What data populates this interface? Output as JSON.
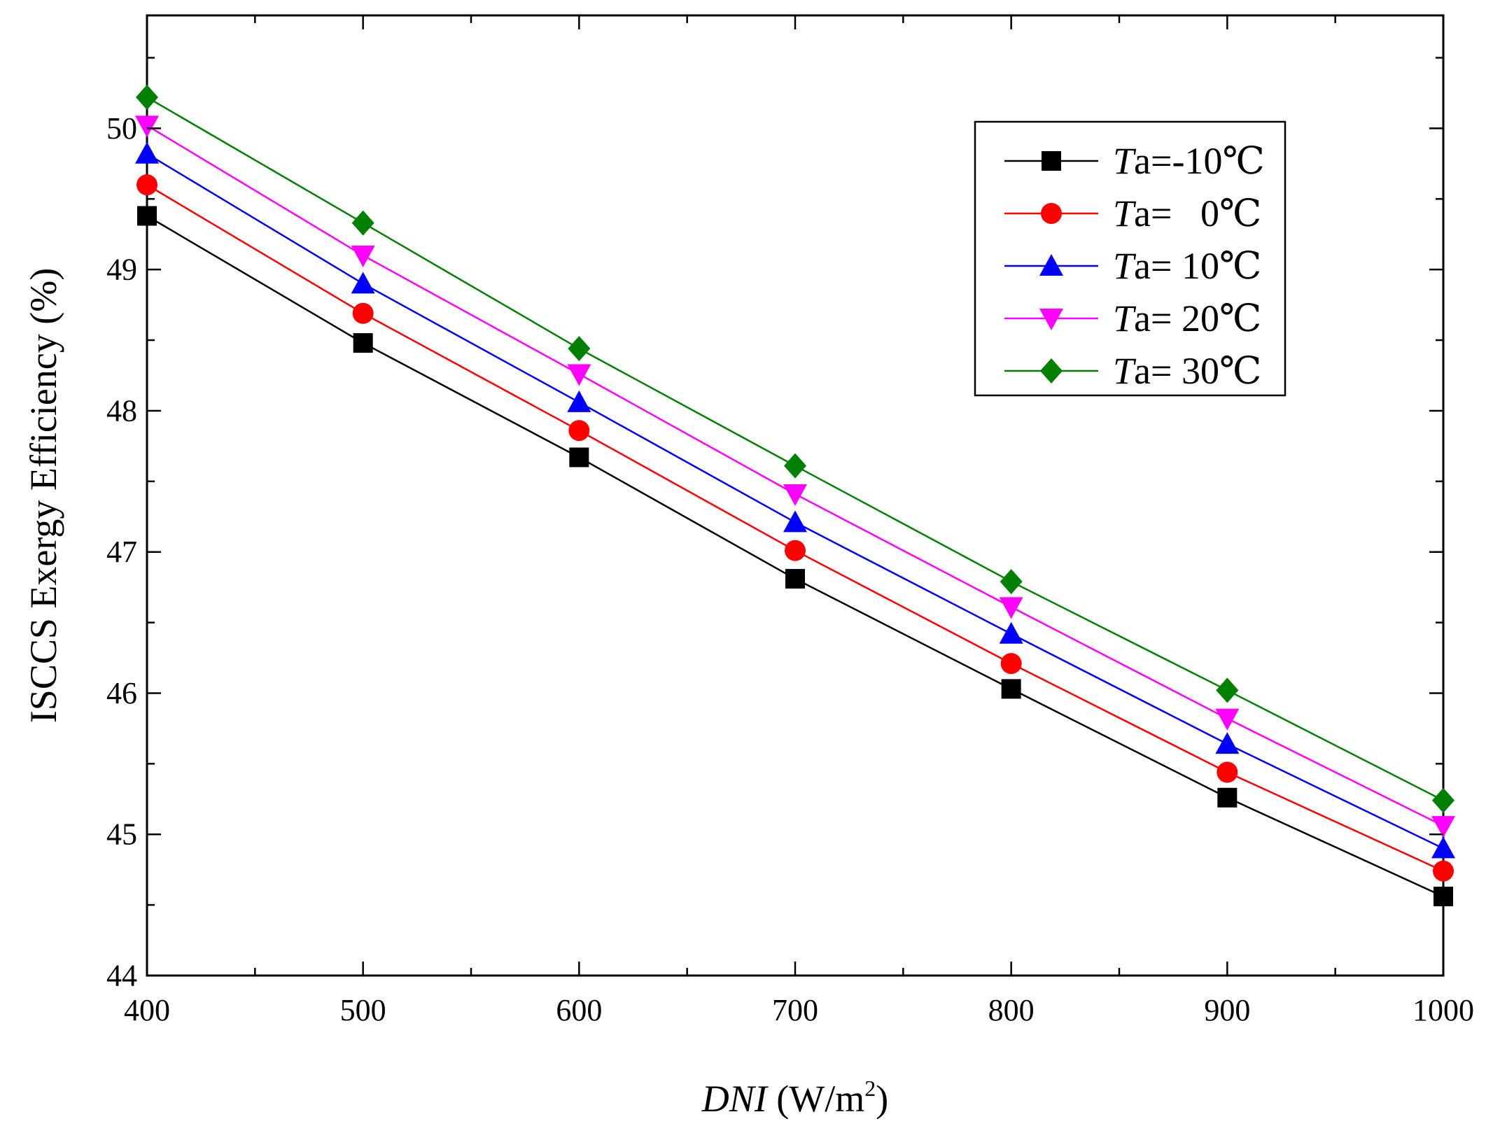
{
  "chart_data": {
    "type": "line",
    "title": "",
    "xlabel": {
      "italic": "DNI",
      "unit_prefix": " (W/m",
      "sup": "2",
      "unit_suffix": ")"
    },
    "ylabel": "ISCCS Exergy Efficiency (%)",
    "x": [
      400,
      500,
      600,
      700,
      800,
      900,
      1000
    ],
    "xlim": [
      400,
      1000
    ],
    "ylim": [
      44,
      50.8
    ],
    "x_ticks": [
      400,
      500,
      600,
      700,
      800,
      900,
      1000
    ],
    "y_ticks": [
      44,
      45,
      46,
      47,
      48,
      49,
      50
    ],
    "grid": false,
    "legend_position": "top-right",
    "series": [
      {
        "name_italic": "T",
        "name_rest": "a=-10℃",
        "color": "#000000",
        "marker": "square",
        "values": [
          49.38,
          48.48,
          47.67,
          46.81,
          46.03,
          45.26,
          44.56
        ]
      },
      {
        "name_italic": "T",
        "name_rest": "a=   0℃",
        "color": "#ff0000",
        "marker": "circle",
        "values": [
          49.6,
          48.69,
          47.86,
          47.01,
          46.21,
          45.44,
          44.74
        ]
      },
      {
        "name_italic": "T",
        "name_rest": "a= 10℃",
        "color": "#0000ff",
        "marker": "triangle-up",
        "values": [
          49.82,
          48.9,
          48.06,
          47.21,
          46.42,
          45.64,
          44.9
        ]
      },
      {
        "name_italic": "T",
        "name_rest": "a= 20℃",
        "color": "#ff00ff",
        "marker": "triangle-down",
        "values": [
          50.02,
          49.1,
          48.26,
          47.41,
          46.61,
          45.82,
          45.06
        ]
      },
      {
        "name_italic": "T",
        "name_rest": "a= 30℃",
        "color": "#008000",
        "marker": "diamond",
        "values": [
          50.22,
          49.33,
          48.44,
          47.61,
          46.79,
          46.02,
          45.24
        ]
      }
    ]
  }
}
